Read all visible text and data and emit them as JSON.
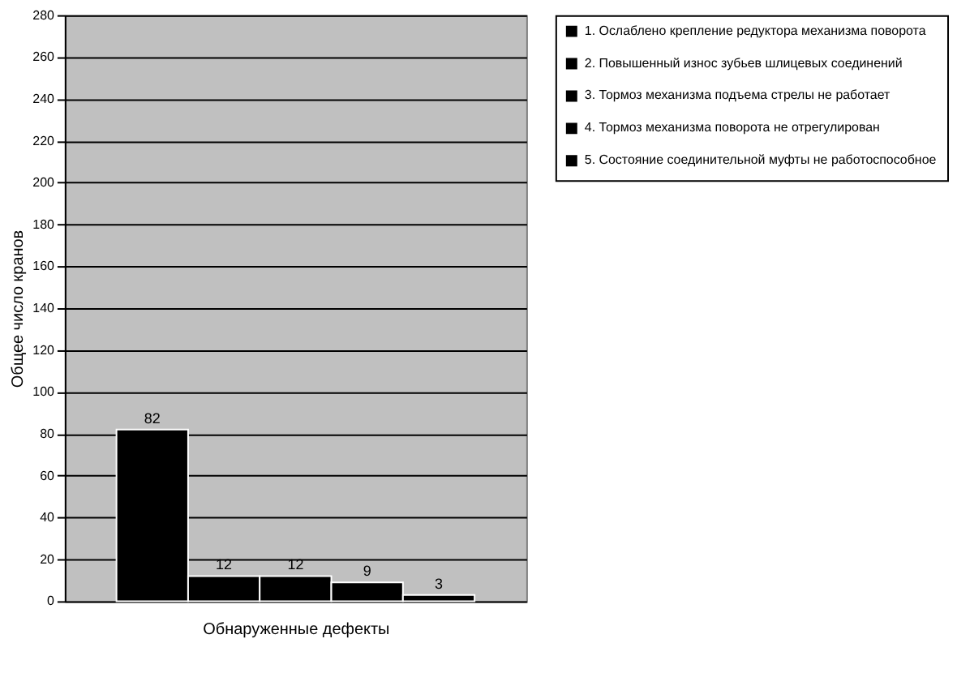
{
  "chart_data": {
    "type": "bar",
    "xlabel": "Обнаруженные дефекты",
    "ylabel": "Общее число кранов",
    "categories": [
      null
    ],
    "series": [
      {
        "name": "1. Ослаблено крепление редуктора механизма поворота",
        "color": "#000000",
        "values": [
          82
        ]
      },
      {
        "name": "2. Повышенный износ зубьев шлицевых соединений",
        "color": "#000000",
        "values": [
          12
        ]
      },
      {
        "name": "3. Тормоз механизма подъема стрелы не работает",
        "color": "#000000",
        "values": [
          12
        ]
      },
      {
        "name": "4. Тормоз механизма поворота не отрегулирован",
        "color": "#000000",
        "values": [
          9
        ]
      },
      {
        "name": "5. Состояние соединительной муфты не работоспособное",
        "color": "#000000",
        "values": [
          3
        ]
      }
    ],
    "ylim": [
      0,
      280
    ],
    "yticks": [
      0,
      20,
      40,
      60,
      80,
      100,
      120,
      140,
      160,
      180,
      200,
      220,
      240,
      260,
      280
    ],
    "grid": "y",
    "legend": "right",
    "data_labels": true
  }
}
